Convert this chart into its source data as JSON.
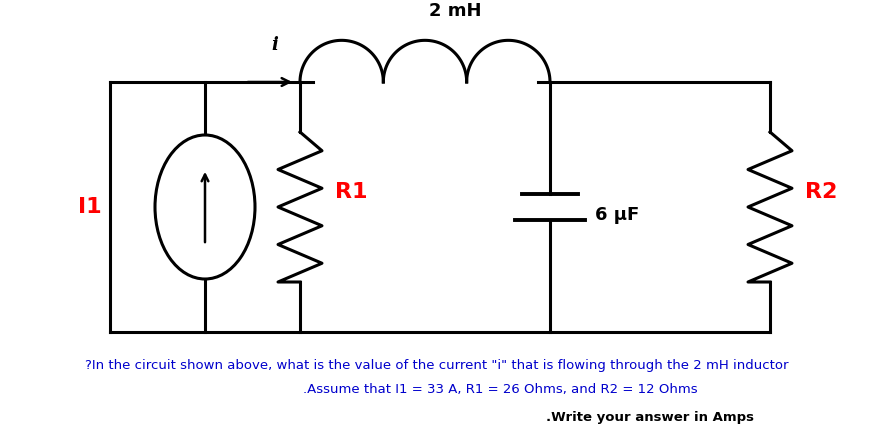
{
  "bg_color": "#ffffff",
  "line_color": "#000000",
  "label_color": "#ff0000",
  "text_color": "#000000",
  "q_color": "#0000cc",
  "label_I1": "I1",
  "label_R1": "R1",
  "label_R2": "R2",
  "label_L": "2 mH",
  "label_C": "6 μF",
  "label_i": "i",
  "q1": "?In the circuit shown above, what is the value of the current \"i\" that is flowing through the 2 mH inductor",
  "q2": ".Assume that I1 = 33 A, R1 = 26 Ohms, and R2 = 12 Ohms",
  "q3": ".Write your answer in Amps",
  "figsize": [
    8.73,
    4.37
  ],
  "dpi": 100
}
